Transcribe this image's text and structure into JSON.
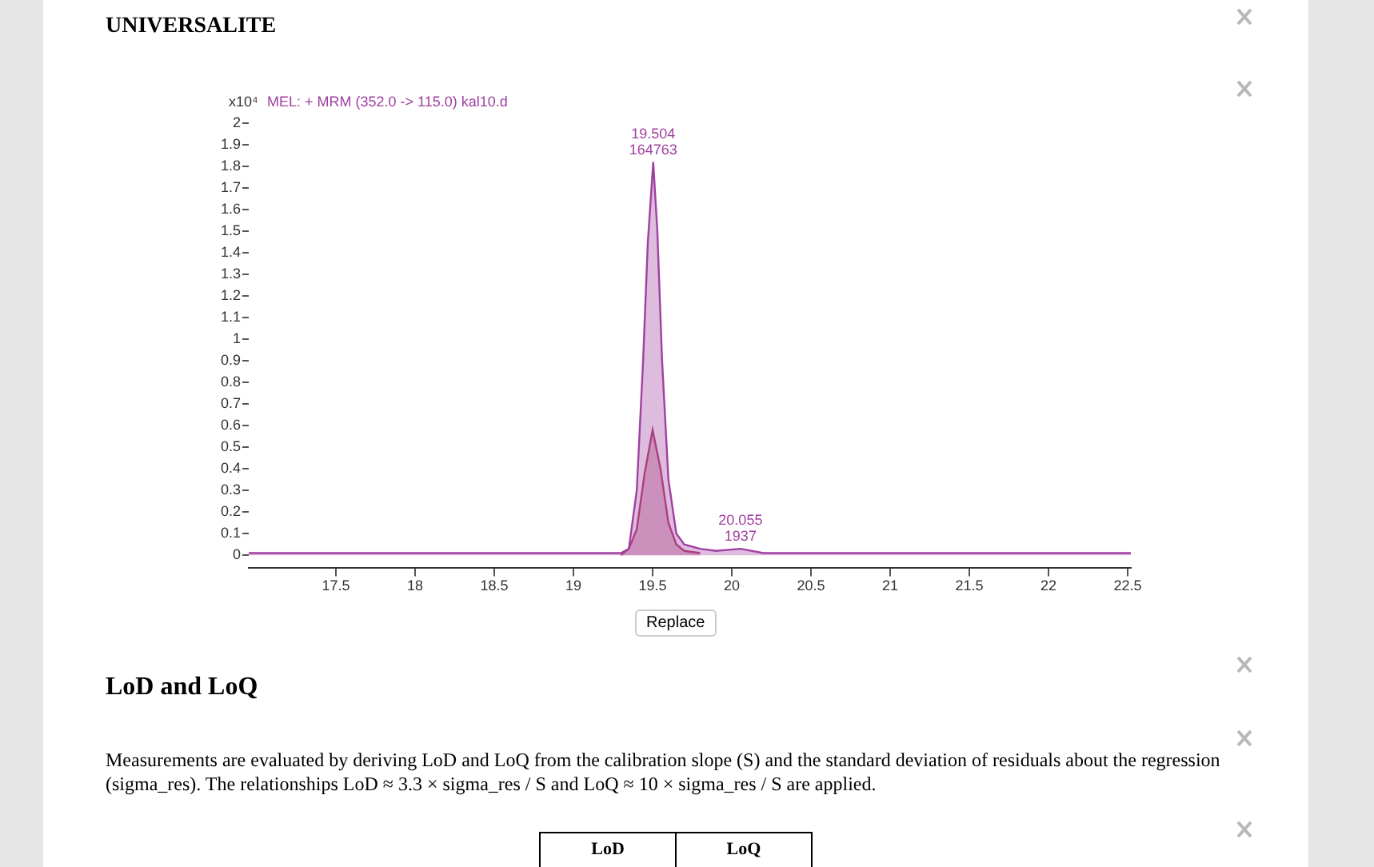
{
  "chart_data": {
    "type": "area",
    "title": "MEL: + MRM (352.0 -> 115.0) kal10.d",
    "ylabel": "x10⁴",
    "annotations": [
      "UNIVERSALITE",
      "Replace",
      "LoD and LoQ",
      "Measurements are evaluated by deriving LoD and LoQ from the calibration slope (S) and the standard deviation of residuals about the regression (sigma_res). The relationships LoD ≈ 3.3 × sigma_res / S and LoQ ≈ 10 × sigma_res / S are applied.",
      "LoD",
      "LoQ",
      {
        "text": "19.504\n164763",
        "x": 19.504,
        "y": 1.82
      },
      {
        "text": "20.055\n1937",
        "x": 20.055,
        "y": 0.03
      }
    ],
    "series": [
      {
        "color": "#a040a0",
        "x": [
          16.95,
          19.3,
          19.35,
          19.4,
          19.44,
          19.47,
          19.504,
          19.53,
          19.56,
          19.6,
          19.65,
          19.7,
          19.8,
          19.9,
          20.055,
          20.2,
          22.52
        ],
        "values": [
          0.01,
          0.01,
          0.03,
          0.3,
          0.9,
          1.45,
          1.82,
          1.5,
          0.9,
          0.35,
          0.1,
          0.05,
          0.03,
          0.02,
          0.03,
          0.01,
          0.01
        ]
      },
      {
        "color": "#b04070",
        "x": [
          19.3,
          19.35,
          19.4,
          19.45,
          19.5,
          19.55,
          19.6,
          19.65,
          19.7,
          19.8
        ],
        "values": [
          0,
          0.03,
          0.12,
          0.38,
          0.58,
          0.4,
          0.15,
          0.05,
          0.02,
          0.01
        ]
      }
    ],
    "xlim": [
      16.95,
      22.52
    ],
    "xticks": [
      17.5,
      18,
      18.5,
      19,
      19.5,
      20,
      20.5,
      21,
      21.5,
      22,
      22.5
    ],
    "ylim": [
      -0.06,
      2
    ],
    "yticks": [
      0,
      0.1,
      0.2,
      0.3,
      0.4,
      0.5,
      0.6,
      0.7,
      0.8,
      0.9,
      1,
      1.1,
      1.2,
      1.3,
      1.4,
      1.5,
      1.6,
      1.7,
      1.8,
      1.9,
      2
    ],
    "grid": false,
    "legend": false,
    "marker": "none"
  }
}
